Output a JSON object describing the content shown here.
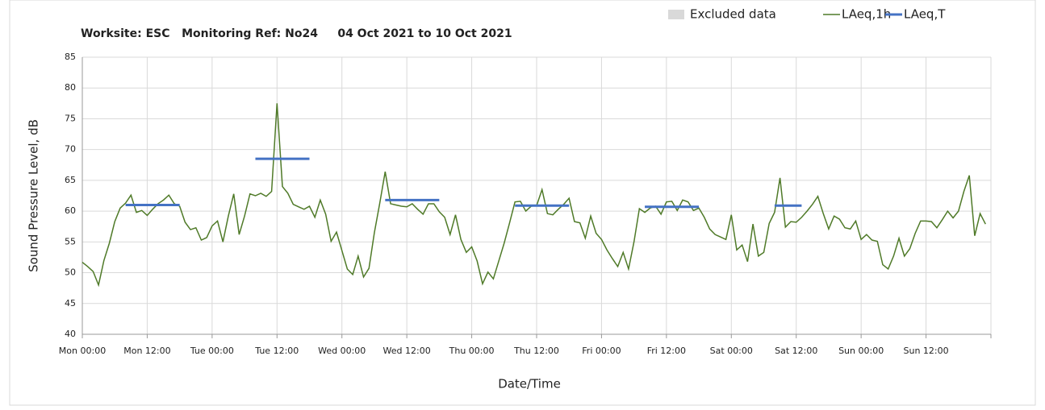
{
  "chart_data": {
    "type": "line",
    "title": "Worksite: ESC   Monitoring Ref: No24     04 Oct 2021 to 10 Oct 2021",
    "y_label": "Sound Pressure Level, dB",
    "x_label": "Date/Time",
    "xlim": [
      0,
      168
    ],
    "xticks": [
      {
        "value": 0,
        "label": "Mon 00:00"
      },
      {
        "value": 12,
        "label": "Mon 12:00"
      },
      {
        "value": 24,
        "label": "Tue 00:00"
      },
      {
        "value": 36,
        "label": "Tue 12:00"
      },
      {
        "value": 48,
        "label": "Wed 00:00"
      },
      {
        "value": 60,
        "label": "Wed 12:00"
      },
      {
        "value": 72,
        "label": "Thu 00:00"
      },
      {
        "value": 84,
        "label": "Thu 12:00"
      },
      {
        "value": 96,
        "label": "Fri 00:00"
      },
      {
        "value": 108,
        "label": "Fri 12:00"
      },
      {
        "value": 120,
        "label": "Sat 00:00"
      },
      {
        "value": 132,
        "label": "Sat 12:00"
      },
      {
        "value": 144,
        "label": "Sun 00:00"
      },
      {
        "value": 156,
        "label": "Sun 12:00"
      },
      {
        "value": 168,
        "label": ""
      }
    ],
    "ylim": [
      40,
      85
    ],
    "yticks": [
      40,
      45,
      50,
      55,
      60,
      65,
      70,
      75,
      80,
      85
    ],
    "grid": true,
    "legend": "top-right",
    "series": [
      {
        "name": "Excluded data",
        "color": "#d9d9d9",
        "kind": "area",
        "values": []
      },
      {
        "name": "LAeq,1h",
        "color": "#4f7a28",
        "kind": "line",
        "x": [
          0,
          1,
          2,
          3,
          4,
          5,
          6,
          7,
          8,
          9,
          10,
          11,
          12,
          13,
          14,
          15,
          16,
          17,
          18,
          19,
          20,
          21,
          22,
          23,
          24,
          25,
          26,
          27,
          28,
          29,
          30,
          31,
          32,
          33,
          34,
          35,
          36,
          37,
          38,
          39,
          40,
          41,
          42,
          43,
          44,
          45,
          46,
          47,
          48,
          49,
          50,
          51,
          52,
          53,
          54,
          55,
          56,
          57,
          58,
          59,
          60,
          61,
          62,
          63,
          64,
          65,
          66,
          67,
          68,
          69,
          70,
          71,
          72,
          73,
          74,
          75,
          76,
          77,
          78,
          79,
          80,
          81,
          82,
          83,
          84,
          85,
          86,
          87,
          88,
          89,
          90,
          91,
          92,
          93,
          94,
          95,
          96,
          97,
          98,
          99,
          100,
          101,
          102,
          103,
          104,
          105,
          106,
          107,
          108,
          109,
          110,
          111,
          112,
          113,
          114,
          115,
          116,
          117,
          118,
          119,
          120,
          121,
          122,
          123,
          124,
          125,
          126,
          127,
          128,
          129,
          130,
          131,
          132,
          133,
          134,
          135,
          136,
          137,
          138,
          139,
          140,
          141,
          142,
          143,
          144,
          145,
          146,
          147,
          148,
          149,
          150,
          151,
          152,
          153,
          154,
          155,
          156,
          157,
          158,
          159,
          160,
          161,
          162,
          163,
          164,
          165,
          166,
          167
        ],
        "values": [
          51.7,
          51,
          50.2,
          48,
          52,
          54.8,
          58.3,
          60.5,
          61.3,
          62.6,
          59.8,
          60.1,
          59.3,
          60.3,
          61.2,
          61.8,
          62.6,
          61.2,
          60.8,
          58.2,
          57,
          57.3,
          55.3,
          55.7,
          57.6,
          58.4,
          55,
          59.2,
          62.8,
          56.2,
          59.2,
          62.8,
          62.5,
          62.9,
          62.4,
          63.2,
          77.5,
          64,
          62.9,
          61.1,
          60.7,
          60.3,
          60.8,
          59,
          61.8,
          59.5,
          55.1,
          56.6,
          53.6,
          50.6,
          49.7,
          52.7,
          49.3,
          50.7,
          56.5,
          61.3,
          66.4,
          61.2,
          61,
          60.8,
          60.7,
          61.2,
          60.3,
          59.5,
          61.2,
          61.2,
          59.9,
          59,
          56.2,
          59.4,
          55.4,
          53.3,
          54.2,
          51.9,
          48.2,
          50.1,
          49,
          51.9,
          54.8,
          58.1,
          61.5,
          61.6,
          60,
          60.8,
          60.9,
          63.5,
          59.6,
          59.4,
          60.3,
          61.1,
          62.1,
          58.3,
          58.1,
          55.6,
          59.2,
          56.4,
          55.4,
          53.7,
          52.3,
          51,
          53.3,
          50.6,
          55,
          60.4,
          59.8,
          60.5,
          60.8,
          59.5,
          61.5,
          61.6,
          60.1,
          61.8,
          61.5,
          60.1,
          60.5,
          59,
          57.1,
          56.2,
          55.8,
          55.4,
          59.4,
          53.7,
          54.5,
          51.8,
          57.9,
          52.7,
          53.3,
          58,
          59.8,
          65.4,
          57.4,
          58.3,
          58.2,
          59,
          60,
          61.1,
          62.4,
          59.6,
          57.1,
          59.2,
          58.7,
          57.3,
          57.1,
          58.4,
          55.4,
          56.2,
          55.3,
          55.1,
          51.3,
          50.6,
          52.7,
          55.6,
          52.7,
          53.9,
          56.4,
          58.4,
          58.4,
          58.3,
          57.3,
          58.6,
          60,
          58.9,
          60,
          63.2,
          65.8,
          56,
          59.6,
          57.9
        ]
      },
      {
        "name": "LAeq,T",
        "color": "#4472c4",
        "kind": "period",
        "x_start": [
          8,
          32,
          56,
          80,
          104,
          128
        ],
        "x_end": [
          18,
          42,
          66,
          90,
          114,
          133
        ],
        "values": [
          61,
          68.5,
          61.8,
          60.9,
          60.7,
          60.9
        ]
      }
    ]
  }
}
